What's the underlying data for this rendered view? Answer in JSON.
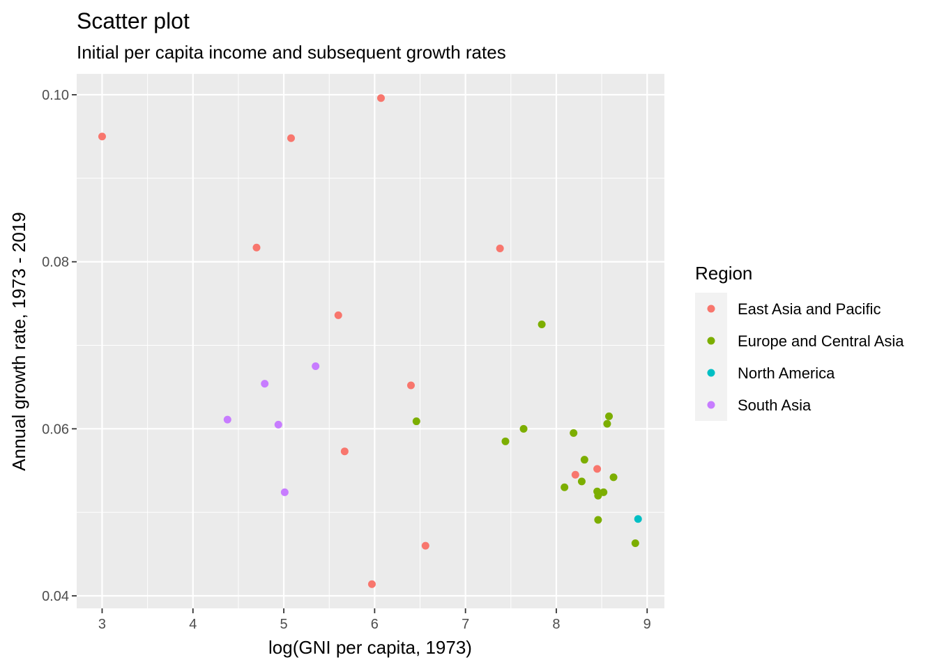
{
  "chart_data": {
    "type": "scatter",
    "title": "Scatter plot",
    "subtitle": "Initial per capita income and subsequent growth rates",
    "xlabel": "log(GNI per capita, 1973)",
    "ylabel": "Annual growth rate, 1973 - 2019",
    "xlim": [
      2.72,
      9.19
    ],
    "ylim": [
      0.0385,
      0.1025
    ],
    "x_ticks": [
      3,
      4,
      5,
      6,
      7,
      8,
      9
    ],
    "x_tick_labels": [
      "3",
      "4",
      "5",
      "6",
      "7",
      "8",
      "9"
    ],
    "y_ticks": [
      0.04,
      0.06,
      0.08,
      0.1
    ],
    "y_tick_labels": [
      "0.04",
      "0.06",
      "0.08",
      "0.10"
    ],
    "grid": true,
    "legend": {
      "title": "Region",
      "position": "right"
    },
    "series": [
      {
        "name": "East Asia and Pacific",
        "color": "#F8766D",
        "points": [
          {
            "x": 3.0,
            "y": 0.095
          },
          {
            "x": 4.7,
            "y": 0.0817
          },
          {
            "x": 5.08,
            "y": 0.0948
          },
          {
            "x": 5.6,
            "y": 0.0736
          },
          {
            "x": 5.67,
            "y": 0.0573
          },
          {
            "x": 5.97,
            "y": 0.0414
          },
          {
            "x": 6.07,
            "y": 0.0996
          },
          {
            "x": 6.4,
            "y": 0.0652
          },
          {
            "x": 6.56,
            "y": 0.046
          },
          {
            "x": 7.38,
            "y": 0.0816
          },
          {
            "x": 8.21,
            "y": 0.0545
          },
          {
            "x": 8.45,
            "y": 0.0552
          }
        ]
      },
      {
        "name": "Europe and Central Asia",
        "color": "#7CAE00",
        "points": [
          {
            "x": 6.46,
            "y": 0.0609
          },
          {
            "x": 7.44,
            "y": 0.0585
          },
          {
            "x": 7.64,
            "y": 0.06
          },
          {
            "x": 7.84,
            "y": 0.0725
          },
          {
            "x": 8.09,
            "y": 0.053
          },
          {
            "x": 8.19,
            "y": 0.0595
          },
          {
            "x": 8.28,
            "y": 0.0537
          },
          {
            "x": 8.31,
            "y": 0.0563
          },
          {
            "x": 8.45,
            "y": 0.0525
          },
          {
            "x": 8.46,
            "y": 0.052
          },
          {
            "x": 8.46,
            "y": 0.0491
          },
          {
            "x": 8.52,
            "y": 0.0524
          },
          {
            "x": 8.56,
            "y": 0.0606
          },
          {
            "x": 8.58,
            "y": 0.0615
          },
          {
            "x": 8.63,
            "y": 0.0542
          },
          {
            "x": 8.87,
            "y": 0.0463
          }
        ]
      },
      {
        "name": "North America",
        "color": "#00BFC4",
        "points": [
          {
            "x": 8.9,
            "y": 0.0492
          }
        ]
      },
      {
        "name": "South Asia",
        "color": "#C77CFF",
        "points": [
          {
            "x": 4.38,
            "y": 0.0611
          },
          {
            "x": 4.79,
            "y": 0.0654
          },
          {
            "x": 4.94,
            "y": 0.0605
          },
          {
            "x": 5.01,
            "y": 0.0524
          },
          {
            "x": 5.35,
            "y": 0.0675
          }
        ]
      }
    ]
  }
}
